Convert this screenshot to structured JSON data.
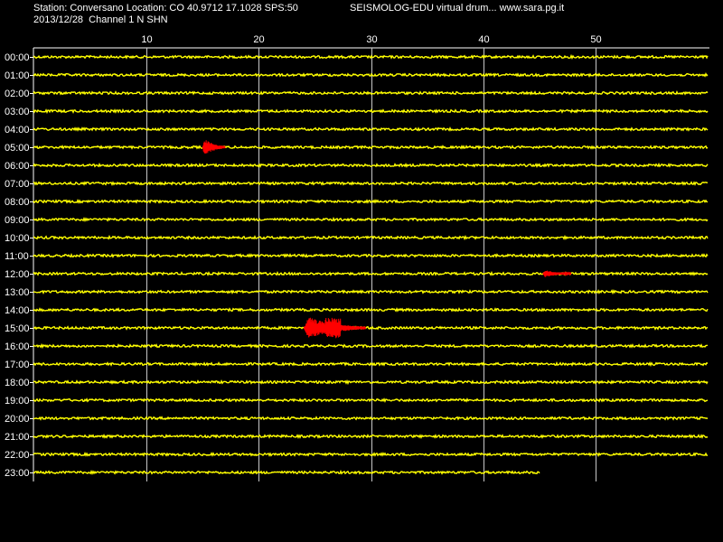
{
  "header": {
    "line1": "Station: Conversano Location: CO 40.9712 17.1028 SPS:50",
    "line2": "2013/12/28  Channel 1 N SHN",
    "right": "SEISMOLOG-EDU virtual drum... www.sara.pg.it"
  },
  "chart_data": {
    "type": "line",
    "x_axis": {
      "ticks": [
        10,
        20,
        30,
        40,
        50
      ],
      "range": [
        0,
        60
      ],
      "unit": ""
    },
    "rows": [
      "00:00",
      "01:00",
      "02:00",
      "03:00",
      "04:00",
      "05:00",
      "06:00",
      "07:00",
      "08:00",
      "09:00",
      "10:00",
      "11:00",
      "12:00",
      "13:00",
      "14:00",
      "15:00",
      "16:00",
      "17:00",
      "18:00",
      "19:00",
      "20:00",
      "21:00",
      "22:00",
      "23:00"
    ],
    "last_row_end": 45,
    "events": [
      {
        "row": "05:00",
        "start": 15.0,
        "end": 17.0,
        "peak": 0.8
      },
      {
        "row": "12:00",
        "start": 45.3,
        "end": 47.8,
        "peak": 0.35
      },
      {
        "row": "15:00",
        "start": 24.0,
        "end": 29.5,
        "peak": 1.0
      }
    ],
    "colors": {
      "trace": "#ffff00",
      "event": "#ff0000",
      "grid": "#ffffff",
      "background": "#000000"
    },
    "grid": true
  }
}
